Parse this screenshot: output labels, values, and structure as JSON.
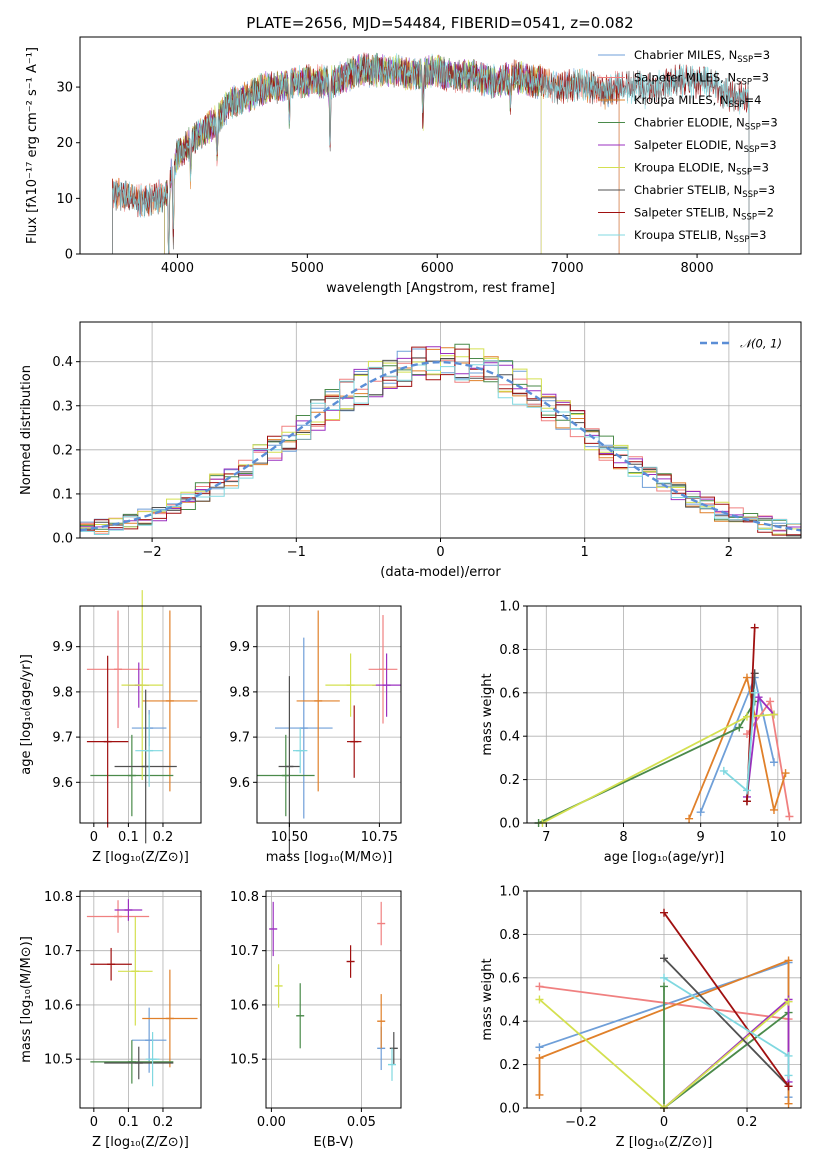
{
  "figure": {
    "title": "PLATE=2656, MJD=54484, FIBERID=0541, z=0.082"
  },
  "colors": {
    "chabrier_miles": "#6f9fd8",
    "salpeter_miles": "#f08080",
    "kroupa_miles": "#e0802a",
    "chabrier_elodie": "#4a8a4a",
    "salpeter_elodie": "#9b30c0",
    "kroupa_elodie": "#d4e050",
    "chabrier_stelib": "#505050",
    "salpeter_stelib": "#a01010",
    "kroupa_stelib": "#80d8e0",
    "gaussian": "#5b8ed6",
    "grid": "#b0b0b0"
  },
  "chart_data": [
    {
      "id": "spectrum",
      "type": "line",
      "xlabel": "wavelength [Angstrom, rest frame]",
      "ylabel": "Flux [fλ10⁻¹⁷ erg cm⁻² s⁻¹ A⁻¹]",
      "xlim": [
        3250,
        8800
      ],
      "ylim": [
        0,
        39
      ],
      "xticks": [
        4000,
        5000,
        6000,
        7000,
        8000
      ],
      "yticks": [
        0,
        10,
        20,
        30
      ],
      "grid": false,
      "legend_position": "top-right",
      "continuum": {
        "x": [
          3500,
          3600,
          3700,
          3800,
          3900,
          4000,
          4100,
          4200,
          4300,
          4400,
          4500,
          4600,
          4700,
          4800,
          4900,
          5000,
          5100,
          5200,
          5300,
          5400,
          5500,
          5600,
          5700,
          5800,
          5900,
          6000,
          6100,
          6200,
          6300,
          6400,
          6500,
          6600,
          6700,
          6800,
          6900,
          7000,
          7100,
          7200,
          7300,
          7400,
          7500,
          7600,
          7700,
          7800,
          7900,
          8000,
          8100,
          8200,
          8300,
          8400
        ],
        "y": [
          11,
          10.5,
          9.5,
          10,
          10.5,
          18,
          20,
          22,
          24,
          27,
          28,
          29,
          30,
          30,
          31,
          31,
          31,
          31,
          32,
          33,
          33,
          33,
          33,
          32,
          32.5,
          33,
          32,
          32,
          32,
          31,
          31,
          32,
          31,
          31,
          30,
          30,
          30.5,
          30,
          29,
          30,
          30,
          30,
          30,
          31,
          31,
          31,
          31,
          29,
          28,
          28
        ]
      },
      "absorption_features": [
        {
          "x": 3933,
          "depth": 16
        },
        {
          "x": 3968,
          "depth": 12
        },
        {
          "x": 4102,
          "depth": 6
        },
        {
          "x": 4305,
          "depth": 7
        },
        {
          "x": 4861,
          "depth": 6
        },
        {
          "x": 5175,
          "depth": 11
        },
        {
          "x": 5890,
          "depth": 8
        },
        {
          "x": 6563,
          "depth": 4
        },
        {
          "x": 7600,
          "depth": 3
        }
      ],
      "series": [
        {
          "name": "Chabrier MILES, N$_{SSP}$=3",
          "label_main": "Chabrier MILES, N",
          "label_sub": "SSP",
          "label_tail": "=3",
          "color_key": "chabrier_miles",
          "xrange": [
            3500,
            7400
          ]
        },
        {
          "name": "Salpeter MILES, N$_{SSP}$=3",
          "label_main": "Salpeter MILES, N",
          "label_sub": "SSP",
          "label_tail": "=3",
          "color_key": "salpeter_miles",
          "xrange": [
            3500,
            7400
          ]
        },
        {
          "name": "Kroupa MILES, N$_{SSP}$=4",
          "label_main": "Kroupa MILES, N",
          "label_sub": "SSP",
          "label_tail": "=4",
          "color_key": "kroupa_miles",
          "xrange": [
            3500,
            7400
          ]
        },
        {
          "name": "Chabrier ELODIE, N$_{SSP}$=3",
          "label_main": "Chabrier ELODIE, N",
          "label_sub": "SSP",
          "label_tail": "=3",
          "color_key": "chabrier_elodie",
          "xrange": [
            3900,
            6800
          ]
        },
        {
          "name": "Salpeter ELODIE, N$_{SSP}$=3",
          "label_main": "Salpeter ELODIE, N",
          "label_sub": "SSP",
          "label_tail": "=3",
          "color_key": "salpeter_elodie",
          "xrange": [
            3900,
            6800
          ]
        },
        {
          "name": "Kroupa ELODIE, N$_{SSP}$=3",
          "label_main": "Kroupa ELODIE, N",
          "label_sub": "SSP",
          "label_tail": "=3",
          "color_key": "kroupa_elodie",
          "xrange": [
            3900,
            6800
          ]
        },
        {
          "name": "Chabrier STELIB, N$_{SSP}$=3",
          "label_main": "Chabrier STELIB, N",
          "label_sub": "SSP",
          "label_tail": "=3",
          "color_key": "chabrier_stelib",
          "xrange": [
            3500,
            8400
          ]
        },
        {
          "name": "Salpeter STELIB, N$_{SSP}$=2",
          "label_main": "Salpeter STELIB, N",
          "label_sub": "SSP",
          "label_tail": "=2",
          "color_key": "salpeter_stelib",
          "xrange": [
            3500,
            8400
          ]
        },
        {
          "name": "Kroupa STELIB, N$_{SSP}$=3",
          "label_main": "Kroupa STELIB, N",
          "label_sub": "SSP",
          "label_tail": "=3",
          "color_key": "kroupa_stelib",
          "xrange": [
            3500,
            8400
          ]
        }
      ]
    },
    {
      "id": "residuals",
      "type": "line",
      "xlabel": "(data-model)/error",
      "ylabel": "Normed distribution",
      "xlim": [
        -2.5,
        2.5
      ],
      "ylim": [
        0,
        0.49
      ],
      "xticks": [
        -2,
        -1,
        0,
        1,
        2
      ],
      "yticks": [
        0.0,
        0.1,
        0.2,
        0.3,
        0.4
      ],
      "grid": true,
      "legend_position": "top-right",
      "legend_label": "𝒩(0, 1)",
      "bin_width": 0.1,
      "gaussian": {
        "mean": 0,
        "sigma": 1,
        "style": "dashed"
      }
    },
    {
      "id": "age_vs_Z",
      "type": "scatter",
      "xlabel": "Z [log₁₀(Z/Z⊙)]",
      "ylabel": "age  [log₁₀(age/yr)]",
      "xlim": [
        -0.04,
        0.31
      ],
      "ylim": [
        9.51,
        9.99
      ],
      "xticks": [
        0.0,
        0.1,
        0.2
      ],
      "yticks": [
        9.6,
        9.7,
        9.8,
        9.9
      ],
      "grid": true,
      "points": [
        {
          "x": 0.16,
          "y": 9.72,
          "xerr": 0.05,
          "yerr": 0.04,
          "color_key": "chabrier_miles"
        },
        {
          "x": 0.07,
          "y": 9.85,
          "xerr": 0.09,
          "yerr": 0.13,
          "color_key": "salpeter_miles"
        },
        {
          "x": 0.22,
          "y": 9.78,
          "xerr": 0.08,
          "yerr": 0.2,
          "color_key": "kroupa_miles"
        },
        {
          "x": 0.11,
          "y": 9.615,
          "xerr": 0.12,
          "yerr": 0.09,
          "color_key": "chabrier_elodie"
        },
        {
          "x": 0.13,
          "y": 9.815,
          "xerr": 0.03,
          "yerr": 0.05,
          "color_key": "salpeter_elodie"
        },
        {
          "x": 0.14,
          "y": 9.815,
          "xerr": 0.06,
          "yerr": 0.21,
          "color_key": "kroupa_elodie"
        },
        {
          "x": 0.15,
          "y": 9.635,
          "xerr": 0.09,
          "yerr": 0.17,
          "color_key": "chabrier_stelib"
        },
        {
          "x": 0.04,
          "y": 9.69,
          "xerr": 0.06,
          "yerr": 0.19,
          "color_key": "salpeter_stelib"
        },
        {
          "x": 0.16,
          "y": 9.67,
          "xerr": 0.04,
          "yerr": 0.08,
          "color_key": "kroupa_stelib"
        }
      ]
    },
    {
      "id": "age_vs_mass",
      "type": "scatter",
      "xlabel": "mass [log₁₀(M/M⊙)]",
      "ylabel": "",
      "xlim": [
        10.41,
        10.81
      ],
      "ylim": [
        9.51,
        9.99
      ],
      "xticks": [
        10.5,
        10.75
      ],
      "tick_labels": [
        "10.50",
        "10.75"
      ],
      "yticks": [
        9.6,
        9.7,
        9.8,
        9.9
      ],
      "grid": true,
      "points": [
        {
          "x": 10.54,
          "y": 9.72,
          "xerr": 0.08,
          "yerr": 0.2,
          "color_key": "chabrier_miles"
        },
        {
          "x": 10.76,
          "y": 9.85,
          "xerr": 0.04,
          "yerr": 0.12,
          "color_key": "salpeter_miles"
        },
        {
          "x": 10.58,
          "y": 9.78,
          "xerr": 0.06,
          "yerr": 0.2,
          "color_key": "kroupa_miles"
        },
        {
          "x": 10.49,
          "y": 9.615,
          "xerr": 0.08,
          "yerr": 0.09,
          "color_key": "chabrier_elodie"
        },
        {
          "x": 10.77,
          "y": 9.815,
          "xerr": 0.04,
          "yerr": 0.07,
          "color_key": "salpeter_elodie"
        },
        {
          "x": 10.67,
          "y": 9.815,
          "xerr": 0.07,
          "yerr": 0.07,
          "color_key": "kroupa_elodie"
        },
        {
          "x": 10.5,
          "y": 9.635,
          "xerr": 0.03,
          "yerr": 0.2,
          "color_key": "chabrier_stelib"
        },
        {
          "x": 10.68,
          "y": 9.69,
          "xerr": 0.02,
          "yerr": 0.08,
          "color_key": "salpeter_stelib"
        },
        {
          "x": 10.53,
          "y": 9.67,
          "xerr": 0.02,
          "yerr": 0.05,
          "color_key": "kroupa_stelib"
        }
      ]
    },
    {
      "id": "mass_weight_vs_age",
      "type": "line",
      "xlabel": "age  [log₁₀(age/yr)]",
      "ylabel": "mass weight",
      "xlim": [
        6.75,
        10.3
      ],
      "ylim": [
        0,
        1.0
      ],
      "xticks": [
        7,
        8,
        9,
        10
      ],
      "yticks": [
        0.0,
        0.2,
        0.4,
        0.6,
        0.8,
        1.0
      ],
      "grid": true,
      "series": [
        {
          "color_key": "chabrier_miles",
          "x": [
            9.0,
            9.7,
            9.95
          ],
          "y": [
            0.05,
            0.67,
            0.28
          ]
        },
        {
          "color_key": "salpeter_miles",
          "x": [
            9.6,
            9.9,
            10.15
          ],
          "y": [
            0.41,
            0.56,
            0.03
          ]
        },
        {
          "color_key": "kroupa_miles",
          "x": [
            8.85,
            9.6,
            9.95,
            10.1
          ],
          "y": [
            0.02,
            0.67,
            0.06,
            0.23
          ]
        },
        {
          "color_key": "chabrier_elodie",
          "x": [
            6.9,
            9.5,
            9.7
          ],
          "y": [
            0.0,
            0.44,
            0.56
          ]
        },
        {
          "color_key": "salpeter_elodie",
          "x": [
            9.6,
            9.75,
            9.95
          ],
          "y": [
            0.12,
            0.58,
            0.5
          ]
        },
        {
          "color_key": "kroupa_elodie",
          "x": [
            6.95,
            9.6,
            9.95
          ],
          "y": [
            0.0,
            0.49,
            0.5
          ]
        },
        {
          "color_key": "chabrier_stelib",
          "x": [
            9.6,
            9.7
          ],
          "y": [
            0.1,
            0.69
          ]
        },
        {
          "color_key": "salpeter_stelib",
          "x": [
            9.6,
            9.7
          ],
          "y": [
            0.1,
            0.9
          ]
        },
        {
          "color_key": "kroupa_stelib",
          "x": [
            9.3,
            9.6,
            9.7
          ],
          "y": [
            0.24,
            0.15,
            0.6
          ]
        }
      ]
    },
    {
      "id": "mass_vs_Z",
      "type": "scatter",
      "xlabel": "Z [log₁₀(Z/Z⊙)]",
      "ylabel": "mass [log₁₀(M/M⊙)]",
      "xlim": [
        -0.04,
        0.31
      ],
      "ylim": [
        10.41,
        10.81
      ],
      "xticks": [
        0.0,
        0.1,
        0.2
      ],
      "yticks": [
        10.5,
        10.6,
        10.7,
        10.8
      ],
      "grid": true,
      "points": [
        {
          "x": 0.16,
          "y": 10.535,
          "xerr": 0.05,
          "yerr": 0.06,
          "color_key": "chabrier_miles"
        },
        {
          "x": 0.07,
          "y": 10.763,
          "xerr": 0.09,
          "yerr": 0.03,
          "color_key": "salpeter_miles"
        },
        {
          "x": 0.22,
          "y": 10.575,
          "xerr": 0.08,
          "yerr": 0.09,
          "color_key": "kroupa_miles"
        },
        {
          "x": 0.11,
          "y": 10.495,
          "xerr": 0.12,
          "yerr": 0.04,
          "color_key": "chabrier_elodie"
        },
        {
          "x": 0.1,
          "y": 10.775,
          "xerr": 0.04,
          "yerr": 0.02,
          "color_key": "salpeter_elodie"
        },
        {
          "x": 0.12,
          "y": 10.662,
          "xerr": 0.05,
          "yerr": 0.1,
          "color_key": "kroupa_elodie"
        },
        {
          "x": 0.13,
          "y": 10.493,
          "xerr": 0.1,
          "yerr": 0.03,
          "color_key": "chabrier_stelib"
        },
        {
          "x": 0.05,
          "y": 10.675,
          "xerr": 0.06,
          "yerr": 0.03,
          "color_key": "salpeter_stelib"
        },
        {
          "x": 0.17,
          "y": 10.5,
          "xerr": 0.02,
          "yerr": 0.05,
          "color_key": "kroupa_stelib"
        }
      ]
    },
    {
      "id": "mass_vs_ebv",
      "type": "scatter",
      "xlabel": "E(B-V)",
      "ylabel": "",
      "xlim": [
        -0.003,
        0.072
      ],
      "ylim": [
        10.41,
        10.81
      ],
      "xticks": [
        0.0,
        0.05
      ],
      "tick_labels": [
        "0.00",
        "0.05"
      ],
      "yticks": [
        10.5,
        10.6,
        10.7,
        10.8
      ],
      "grid": true,
      "points": [
        {
          "x": 0.061,
          "y": 10.52,
          "xerr": 0,
          "yerr": 0.04,
          "color_key": "chabrier_miles"
        },
        {
          "x": 0.061,
          "y": 10.75,
          "xerr": 0,
          "yerr": 0.04,
          "color_key": "salpeter_miles"
        },
        {
          "x": 0.061,
          "y": 10.57,
          "xerr": 0,
          "yerr": 0.05,
          "color_key": "kroupa_miles"
        },
        {
          "x": 0.016,
          "y": 10.58,
          "xerr": 0,
          "yerr": 0.06,
          "color_key": "chabrier_elodie"
        },
        {
          "x": 0.001,
          "y": 10.74,
          "xerr": 0,
          "yerr": 0.05,
          "color_key": "salpeter_elodie"
        },
        {
          "x": 0.004,
          "y": 10.635,
          "xerr": 0,
          "yerr": 0.04,
          "color_key": "kroupa_elodie"
        },
        {
          "x": 0.068,
          "y": 10.52,
          "xerr": 0,
          "yerr": 0.03,
          "color_key": "chabrier_stelib"
        },
        {
          "x": 0.044,
          "y": 10.68,
          "xerr": 0,
          "yerr": 0.03,
          "color_key": "salpeter_stelib"
        },
        {
          "x": 0.067,
          "y": 10.49,
          "xerr": 0,
          "yerr": 0.03,
          "color_key": "kroupa_stelib"
        }
      ]
    },
    {
      "id": "mass_weight_vs_Z",
      "type": "line",
      "xlabel": "Z [log₁₀(Z/Z⊙)]",
      "ylabel": "mass weight",
      "xlim": [
        -0.33,
        0.33
      ],
      "ylim": [
        0,
        1.0
      ],
      "xticks": [
        -0.2,
        0.0,
        0.2
      ],
      "yticks": [
        0.0,
        0.2,
        0.4,
        0.6,
        0.8,
        1.0
      ],
      "grid": true,
      "series": [
        {
          "color_key": "chabrier_miles",
          "x": [
            -0.3,
            0.3,
            0.3
          ],
          "y": [
            0.28,
            0.67,
            0.05
          ]
        },
        {
          "color_key": "salpeter_miles",
          "x": [
            -0.3,
            0.3
          ],
          "y": [
            0.56,
            0.41
          ]
        },
        {
          "color_key": "kroupa_miles",
          "x": [
            -0.3,
            -0.3,
            0.3,
            0.3
          ],
          "y": [
            0.06,
            0.23,
            0.68,
            0.02
          ]
        },
        {
          "color_key": "chabrier_elodie",
          "x": [
            0.0,
            0.0,
            0.3
          ],
          "y": [
            0.56,
            0.0,
            0.44
          ]
        },
        {
          "color_key": "salpeter_elodie",
          "x": [
            0.0,
            0.3,
            0.3
          ],
          "y": [
            0.0,
            0.5,
            0.12
          ]
        },
        {
          "color_key": "kroupa_elodie",
          "x": [
            -0.3,
            0.0,
            0.3
          ],
          "y": [
            0.5,
            0.0,
            0.49
          ]
        },
        {
          "color_key": "chabrier_stelib",
          "x": [
            0.0,
            0.3
          ],
          "y": [
            0.69,
            0.1
          ]
        },
        {
          "color_key": "salpeter_stelib",
          "x": [
            0.0,
            0.3
          ],
          "y": [
            0.9,
            0.1
          ]
        },
        {
          "color_key": "kroupa_stelib",
          "x": [
            0.0,
            0.3,
            0.3
          ],
          "y": [
            0.6,
            0.24,
            0.15
          ]
        }
      ]
    }
  ]
}
